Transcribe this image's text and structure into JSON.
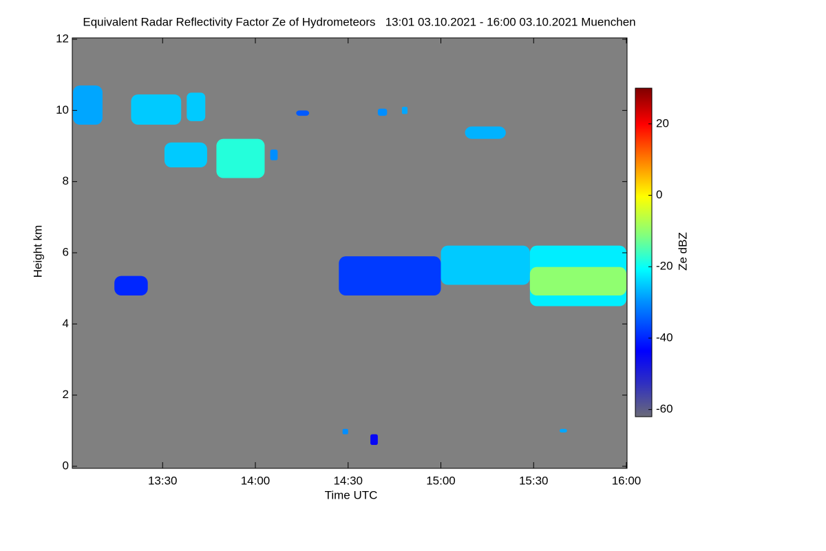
{
  "chart_data": {
    "type": "heatmap",
    "title": "Equivalent Radar Reflectivity Factor Ze of Hydrometeors   13:01 03.10.2021 - 16:00 03.10.2021 Muenchen",
    "xlabel": "Time UTC",
    "ylabel": "Height km",
    "xlim": [
      13.0167,
      16.0
    ],
    "xticks": [
      {
        "value": 13.5,
        "label": "13:30"
      },
      {
        "value": 14.0,
        "label": "14:00"
      },
      {
        "value": 14.5,
        "label": "14:30"
      },
      {
        "value": 15.0,
        "label": "15:00"
      },
      {
        "value": 15.5,
        "label": "15:30"
      },
      {
        "value": 16.0,
        "label": "16:00"
      }
    ],
    "ylim": [
      0,
      12
    ],
    "yticks": [
      0,
      2,
      4,
      6,
      8,
      10,
      12
    ],
    "background": "#808080",
    "colorbar": {
      "label": "Ze dBZ",
      "lim": [
        -62,
        30
      ],
      "ticks": [
        -60,
        -40,
        -20,
        0,
        20
      ]
    },
    "cells": [
      {
        "x": [
          13.017,
          13.176
        ],
        "y": [
          9.6,
          10.7
        ],
        "value": -28
      },
      {
        "x": [
          13.33,
          13.6
        ],
        "y": [
          9.6,
          10.45
        ],
        "value": -25
      },
      {
        "x": [
          13.63,
          13.73
        ],
        "y": [
          9.7,
          10.5
        ],
        "value": -25
      },
      {
        "x": [
          13.51,
          13.74
        ],
        "y": [
          8.4,
          9.1
        ],
        "value": -25
      },
      {
        "x": [
          13.79,
          14.05
        ],
        "y": [
          8.1,
          9.2
        ],
        "value": -18
      },
      {
        "x": [
          14.08,
          14.12
        ],
        "y": [
          8.6,
          8.9
        ],
        "value": -30
      },
      {
        "x": [
          14.22,
          14.29
        ],
        "y": [
          9.85,
          10.0
        ],
        "value": -35
      },
      {
        "x": [
          14.66,
          14.71
        ],
        "y": [
          9.85,
          10.05
        ],
        "value": -30
      },
      {
        "x": [
          14.79,
          14.82
        ],
        "y": [
          9.9,
          10.1
        ],
        "value": -28
      },
      {
        "x": [
          15.13,
          15.35
        ],
        "y": [
          9.2,
          9.55
        ],
        "value": -27
      },
      {
        "x": [
          13.24,
          13.42
        ],
        "y": [
          4.8,
          5.35
        ],
        "value": -40
      },
      {
        "x": [
          14.45,
          15.0
        ],
        "y": [
          4.8,
          5.9
        ],
        "value": -38
      },
      {
        "x": [
          15.0,
          15.48
        ],
        "y": [
          5.1,
          6.2
        ],
        "value": -25
      },
      {
        "x": [
          15.48,
          16.0
        ],
        "y": [
          4.5,
          6.2
        ],
        "value": -22
      },
      {
        "x": [
          15.48,
          16.0
        ],
        "y": [
          4.8,
          5.6
        ],
        "value": -10
      },
      {
        "x": [
          14.47,
          14.5
        ],
        "y": [
          0.9,
          1.05
        ],
        "value": -30
      },
      {
        "x": [
          15.64,
          15.68
        ],
        "y": [
          0.95,
          1.05
        ],
        "value": -28
      },
      {
        "x": [
          14.62,
          14.66
        ],
        "y": [
          0.6,
          0.9
        ],
        "value": -45
      }
    ]
  }
}
